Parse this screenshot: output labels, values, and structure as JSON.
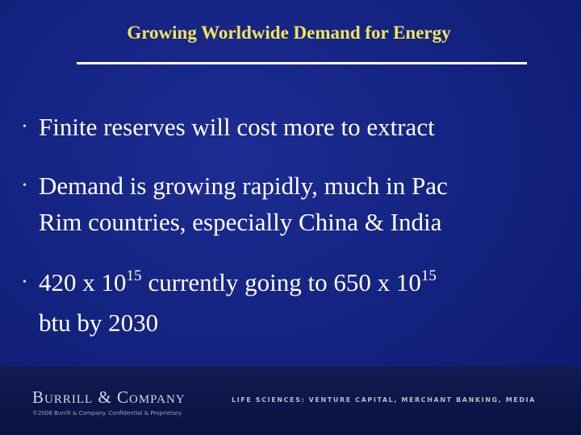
{
  "header": {
    "title": "Growing Worldwide Demand for Energy"
  },
  "bullets": [
    {
      "lines": [
        "Finite reserves will cost more to extract"
      ]
    },
    {
      "lines": [
        "Demand is growing rapidly, much in Pac",
        "Rim countries, especially China & India"
      ]
    },
    {
      "first_line": [
        {
          "text": "420 x 10"
        },
        {
          "sup": "15"
        },
        {
          "text": "currently going to 650 x 10"
        },
        {
          "sup": "15"
        }
      ],
      "second_line": "btu by 2030"
    }
  ],
  "footer": {
    "logo": "Burrill & Company",
    "tagline": "LIFE SCIENCES: VENTURE CAPITAL, MERCHANT BANKING, MEDIA",
    "copyright": "©2006 Burrill & Company. Confidential & Proprietary"
  }
}
